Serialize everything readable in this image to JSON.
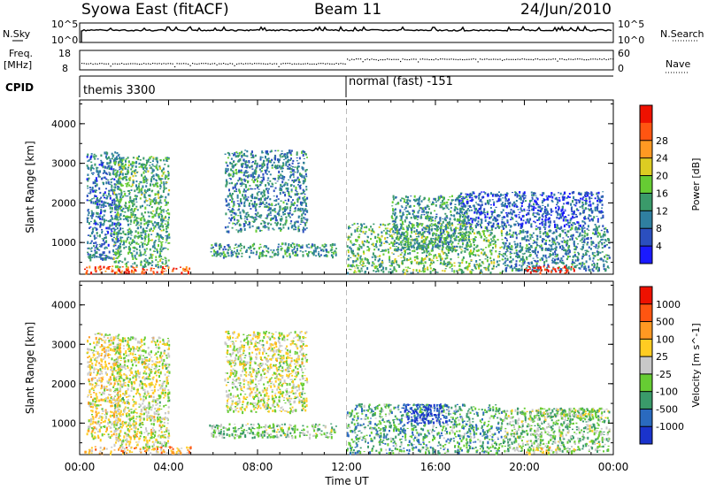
{
  "header": {
    "title": "Syowa East (fitACF)",
    "beam": "Beam 11",
    "date": "24/Jun/2010"
  },
  "top_panels": {
    "nsky_label": "N.Sky",
    "nsearch_label": "N.Search",
    "noise_tick_high": "10^5",
    "noise_tick_low": "10^0",
    "freq_label": "Freq.",
    "freq_unit": "[MHz]",
    "freq_ticks": [
      "18",
      "8"
    ],
    "nave_label": "Nave",
    "nave_ticks": [
      "60",
      "0"
    ],
    "cpid_label": "CPID",
    "cpid_segments": [
      "themis 3300",
      "normal (fast) -151"
    ]
  },
  "chart_data": [
    {
      "type": "heatmap",
      "name": "power",
      "ylabel": "Slant Range [km]",
      "xlabel": "Time UT",
      "xticks": [
        "00:00",
        "04:00",
        "08:00",
        "12:00",
        "16:00",
        "20:00",
        "00:00"
      ],
      "xlim": [
        0,
        24
      ],
      "yticks": [
        "1000",
        "2000",
        "3000",
        "4000"
      ],
      "ylim": [
        200,
        4600
      ],
      "colorbar": {
        "label": "Power [dB]",
        "ticks": [
          "4",
          "8",
          "12",
          "16",
          "20",
          "24",
          "28"
        ],
        "colors": [
          "#1a1aff",
          "#2b4fbf",
          "#2f7fa0",
          "#3a9a6a",
          "#66cc33",
          "#ddcc22",
          "#ff9922",
          "#ff5511",
          "#ee1100"
        ]
      },
      "regions": [
        {
          "t0": 0.2,
          "t1": 5.0,
          "r0": 250,
          "r1": 420,
          "level": 0.85
        },
        {
          "t0": 0.3,
          "t1": 1.8,
          "r0": 600,
          "r1": 3300,
          "level": 0.25
        },
        {
          "t0": 1.5,
          "t1": 4.0,
          "r0": 400,
          "r1": 3200,
          "level": 0.4
        },
        {
          "t0": 5.8,
          "t1": 11.5,
          "r0": 650,
          "r1": 1000,
          "level": 0.35
        },
        {
          "t0": 6.5,
          "t1": 10.2,
          "r0": 1300,
          "r1": 3350,
          "level": 0.3
        },
        {
          "t0": 12.0,
          "t1": 19.0,
          "r0": 250,
          "r1": 1500,
          "level": 0.45
        },
        {
          "t0": 14.0,
          "t1": 17.5,
          "r0": 800,
          "r1": 2200,
          "level": 0.35
        },
        {
          "t0": 19.0,
          "t1": 23.8,
          "r0": 300,
          "r1": 1400,
          "level": 0.3
        },
        {
          "t0": 20.0,
          "t1": 22.3,
          "r0": 250,
          "r1": 420,
          "level": 0.95
        },
        {
          "t0": 17.0,
          "t1": 23.5,
          "r0": 1400,
          "r1": 2300,
          "level": 0.2
        }
      ]
    },
    {
      "type": "heatmap",
      "name": "velocity",
      "ylabel": "Slant Range [km]",
      "xlabel": "Time UT",
      "xticks": [
        "00:00",
        "04:00",
        "08:00",
        "12:00",
        "16:00",
        "20:00",
        "00:00"
      ],
      "xlim": [
        0,
        24
      ],
      "yticks": [
        "1000",
        "2000",
        "3000",
        "4000"
      ],
      "ylim": [
        200,
        4600
      ],
      "colorbar": {
        "label": "Velocity [m s^-1]",
        "ticks": [
          "1000",
          "500",
          "100",
          "25",
          "-25",
          "-100",
          "-500",
          "-1000"
        ],
        "colors": [
          "#1a33cc",
          "#2a6abf",
          "#3a9a6a",
          "#66cc33",
          "#c8c8c8",
          "#ffcc22",
          "#ff9922",
          "#ff5511",
          "#ee1100"
        ]
      },
      "regions": [
        {
          "t0": 0.2,
          "t1": 5.0,
          "r0": 250,
          "r1": 420,
          "level": 0.65
        },
        {
          "t0": 0.3,
          "t1": 1.8,
          "r0": 600,
          "r1": 3300,
          "level": 0.55
        },
        {
          "t0": 1.5,
          "t1": 4.0,
          "r0": 400,
          "r1": 3200,
          "level": 0.5
        },
        {
          "t0": 5.8,
          "t1": 11.5,
          "r0": 650,
          "r1": 1000,
          "level": 0.4
        },
        {
          "t0": 6.5,
          "t1": 10.2,
          "r0": 1300,
          "r1": 3350,
          "level": 0.5
        },
        {
          "t0": 12.0,
          "t1": 19.0,
          "r0": 250,
          "r1": 1500,
          "level": 0.3
        },
        {
          "t0": 14.5,
          "t1": 16.5,
          "r0": 1000,
          "r1": 1500,
          "level": 0.05
        },
        {
          "t0": 19.0,
          "t1": 23.8,
          "r0": 300,
          "r1": 1400,
          "level": 0.4
        },
        {
          "t0": 20.0,
          "t1": 22.3,
          "r0": 250,
          "r1": 420,
          "level": 0.55
        },
        {
          "t0": 20.5,
          "t1": 23.5,
          "r0": 1150,
          "r1": 1400,
          "level": 0.45
        }
      ]
    }
  ]
}
